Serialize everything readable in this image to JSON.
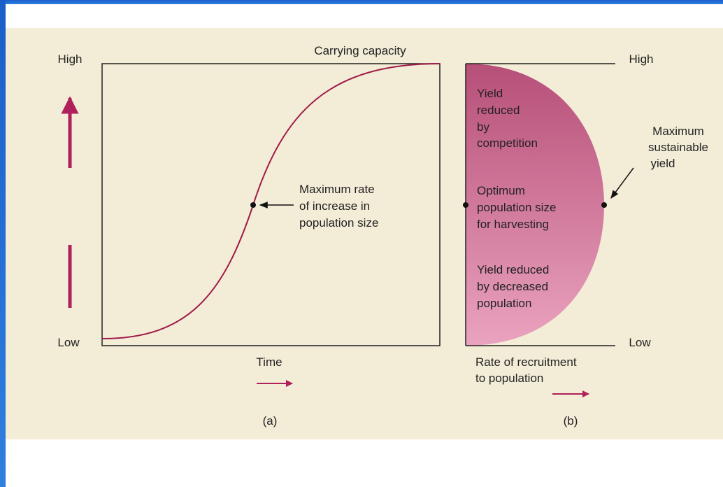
{
  "panel_a": {
    "high_label": "High",
    "low_label": "Low",
    "top_label": "Carrying capacity",
    "annotation": [
      "Maximum rate",
      "of increase in",
      "population size"
    ],
    "x_label": "Time",
    "caption": "(a)"
  },
  "panel_b": {
    "high_label": "High",
    "low_label": "Low",
    "region_top": [
      "Yield",
      "reduced",
      "by",
      "competition"
    ],
    "region_middle": [
      "Optimum",
      "population size",
      "for harvesting"
    ],
    "region_bottom": [
      "Yield reduced",
      "by decreased",
      "population"
    ],
    "annotation": [
      "Maximum",
      "sustainable",
      "yield"
    ],
    "x_label": [
      "Rate of recruitment",
      "to population"
    ],
    "caption": "(b)"
  }
}
